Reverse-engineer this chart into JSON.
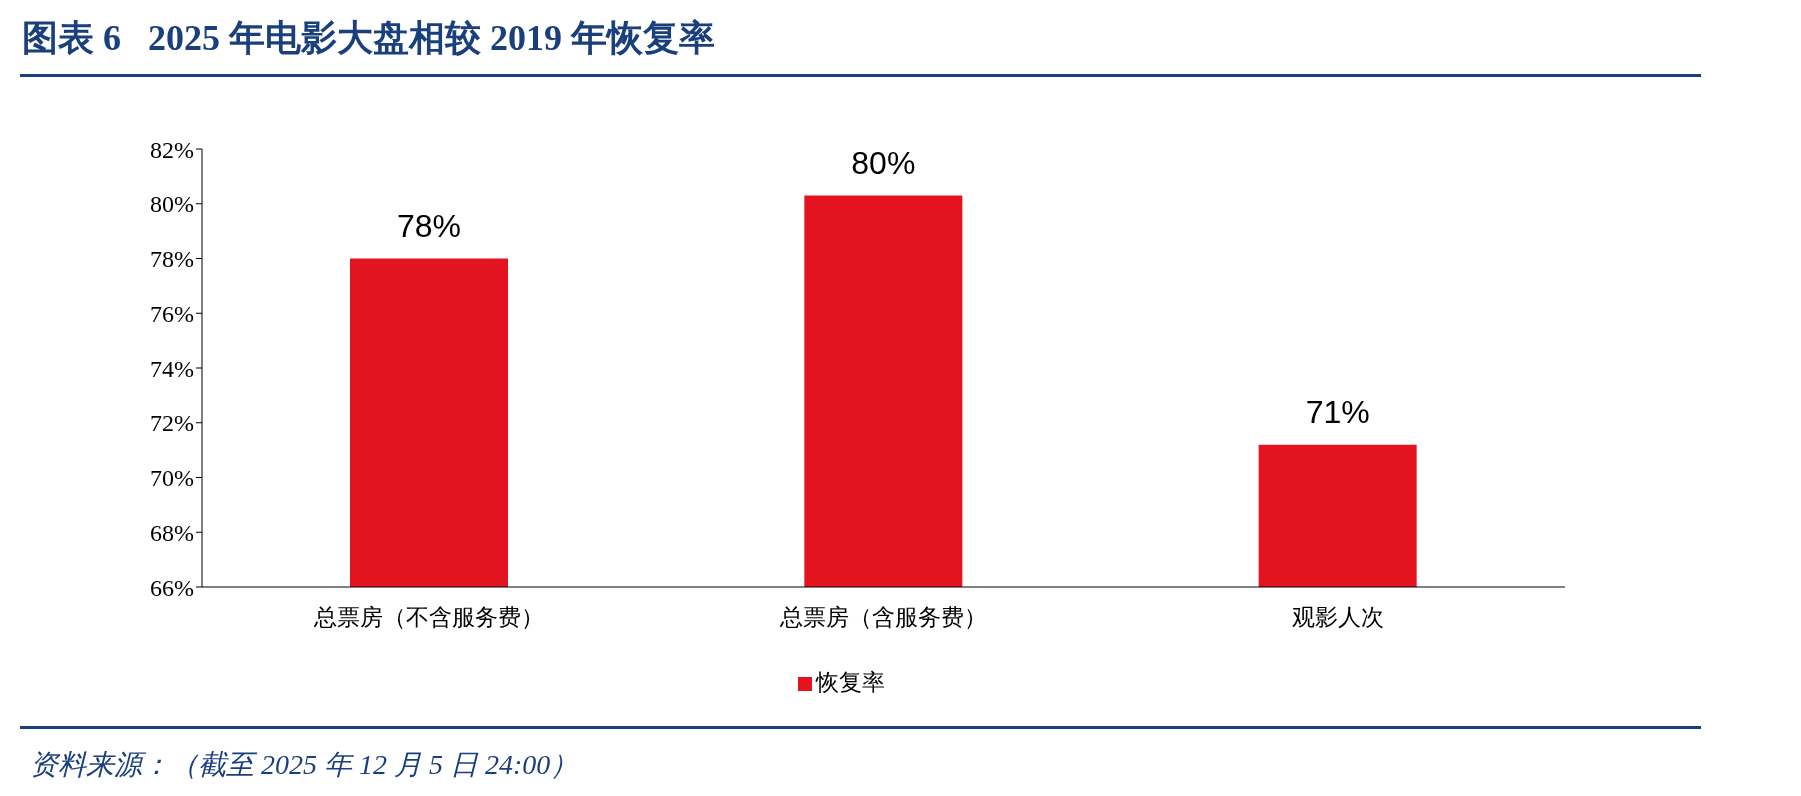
{
  "chart_data": {
    "type": "bar",
    "title": "图表 6   2025 年电影大盘相较 2019 年恢复率",
    "categories": [
      "总票房（不含服务费）",
      "总票房（含服务费）",
      "观影人次"
    ],
    "series": [
      {
        "name": "恢复率",
        "color": "#e3141f",
        "values": [
          78.0,
          80.3,
          71.2
        ],
        "value_labels": [
          "78%",
          "80%",
          "71%"
        ]
      }
    ],
    "ylim": [
      66,
      82
    ],
    "yticks": [
      {
        "value": 66,
        "label": "66%"
      },
      {
        "value": 68,
        "label": "68%"
      },
      {
        "value": 70,
        "label": "70%"
      },
      {
        "value": 72,
        "label": "72%"
      },
      {
        "value": 74,
        "label": "74%"
      },
      {
        "value": 76,
        "label": "76%"
      },
      {
        "value": 78,
        "label": "78%"
      },
      {
        "value": 80,
        "label": "80%"
      },
      {
        "value": 82,
        "label": "82%"
      }
    ],
    "grid": false,
    "legend": "bottom",
    "annotations": [
      "资料来源：（截至 2025 年 12 月 5 日 24:00）"
    ]
  }
}
